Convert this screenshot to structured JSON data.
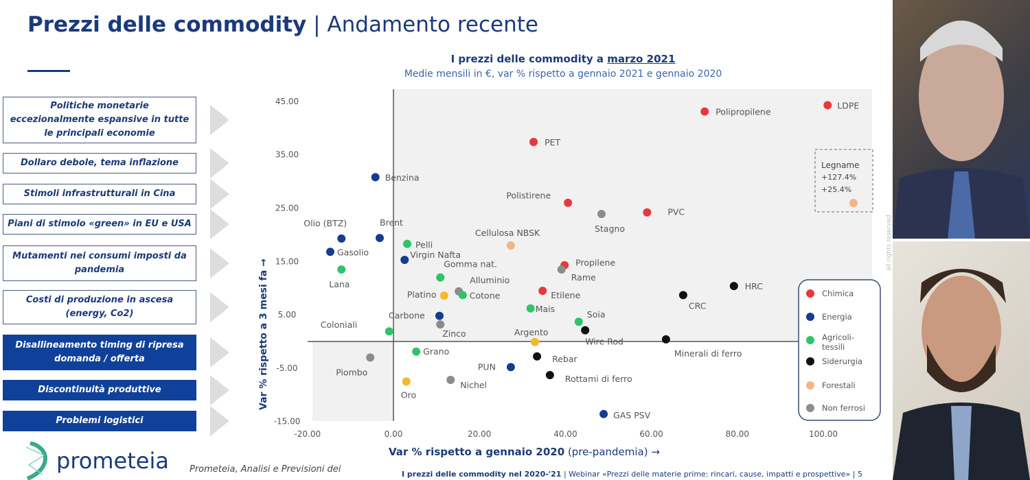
{
  "slide": {
    "title_bold": "Prezzi delle commodity",
    "title_sep": " | ",
    "title_light": "Andamento recente",
    "drivers": [
      {
        "label": "Politiche monetarie eccezionalmente espansive in tutte le principali economie",
        "highlight": false
      },
      {
        "label": "Dollaro debole, tema inflazione",
        "highlight": false
      },
      {
        "label": "Stimoli infrastrutturali in Cina",
        "highlight": false
      },
      {
        "label": "Piani di stimolo «green» in EU e USA",
        "highlight": false
      },
      {
        "label": "Mutamenti nei consumi imposti da pandemia",
        "highlight": false
      },
      {
        "label": "Costi di produzione in ascesa (energy, Co2)",
        "highlight": false
      },
      {
        "label": "Disallineamento timing di ripresa domanda / offerta",
        "highlight": true
      },
      {
        "label": "Discontinuità produttive",
        "highlight": true
      },
      {
        "label": "Problemi logistici",
        "highlight": true
      }
    ],
    "logo": "prometeia",
    "source": "Prometeia, Analisi e Previsioni dei",
    "footer_bold": "I prezzi delle commodity nel 2020-'21",
    "footer_rest": " | Webinar «Prezzi delle materie prime: rincari, cause, impatti e prospettive» | 5",
    "rights": "all rights reserved"
  },
  "chart_data": {
    "type": "scatter",
    "title_prefix": "I prezzi delle commodity a ",
    "title_emph": "marzo 2021",
    "subtitle": "Medie mensili in €, var % rispetto a gennaio 2021 e gennaio 2020",
    "xlabel_bold": "Var % rispetto a gennaio 2020",
    "xlabel_rest": " (pre-pandemia) →",
    "ylabel": "Var % rispetto a 3 mesi fa →",
    "xlim": [
      -20,
      100
    ],
    "ylim": [
      -15,
      45
    ],
    "xticks": [
      "-20.00",
      "0.00",
      "20.00",
      "40.00",
      "60.00",
      "80.00",
      "100.00"
    ],
    "yticks": [
      "45.00",
      "35.00",
      "25.00",
      "15.00",
      "5.00",
      "-5.00",
      "-15.00"
    ],
    "categories": [
      {
        "name": "Chimica",
        "color": "#e8383d"
      },
      {
        "name": "Energia",
        "color": "#133d91"
      },
      {
        "name": "Agricoli-tessili",
        "color": "#2ec46a"
      },
      {
        "name": "Siderurgia",
        "color": "#111111"
      },
      {
        "name": "Forestali",
        "color": "#f4b583"
      },
      {
        "name": "Non ferrosi",
        "color": "#8c8c8c"
      }
    ],
    "legend_position": "bottom-right",
    "points": [
      {
        "label": "LDPE",
        "cat": 0,
        "x": 101,
        "y": 44.3
      },
      {
        "label": "Polipropilene",
        "cat": 0,
        "x": 72.4,
        "y": 43.1
      },
      {
        "label": "PET",
        "cat": 0,
        "x": 32.6,
        "y": 37.4
      },
      {
        "label": "Benzina",
        "cat": 1,
        "x": -4.2,
        "y": 30.8
      },
      {
        "label": "Polistirene",
        "cat": 0,
        "x": 40.6,
        "y": 26.0
      },
      {
        "label": "Stagno",
        "cat": 5,
        "x": 48.4,
        "y": 23.9
      },
      {
        "label": "PVC",
        "cat": 0,
        "x": 59.0,
        "y": 24.2
      },
      {
        "label": "Olio (BTZ)",
        "cat": 1,
        "x": -12.1,
        "y": 19.3
      },
      {
        "label": "Brent",
        "cat": 1,
        "x": -3.2,
        "y": 19.4
      },
      {
        "label": "Cellulosa NBSK",
        "cat": 4,
        "x": 27.3,
        "y": 18.0
      },
      {
        "label": "Pelli",
        "cat": 2,
        "x": 3.2,
        "y": 18.3
      },
      {
        "label": "Gasolio",
        "cat": 1,
        "x": -14.7,
        "y": 16.8
      },
      {
        "label": "Virgin Nafta",
        "cat": 1,
        "x": 2.6,
        "y": 15.3
      },
      {
        "label": "Propilene",
        "cat": 0,
        "x": 39.8,
        "y": 14.3
      },
      {
        "label": "Rame",
        "cat": 5,
        "x": 39.1,
        "y": 13.5
      },
      {
        "label": "Lana",
        "cat": 2,
        "x": -12.1,
        "y": 13.5
      },
      {
        "label": "Gomma nat.",
        "cat": 2,
        "x": 10.9,
        "y": 12.0
      },
      {
        "label": "HRC",
        "cat": 3,
        "x": 79.2,
        "y": 10.4
      },
      {
        "label": "Etilene",
        "cat": 0,
        "x": 34.7,
        "y": 9.5
      },
      {
        "label": "Alluminio",
        "cat": 5,
        "x": 15.2,
        "y": 9.4
      },
      {
        "label": "Platino",
        "cat": 4,
        "x": 11.8,
        "y": 8.6,
        "color": "#f2b92b"
      },
      {
        "label": "Cotone",
        "cat": 2,
        "x": 16.1,
        "y": 8.7
      },
      {
        "label": "CRC",
        "cat": 3,
        "x": 67.4,
        "y": 8.7
      },
      {
        "label": "Mais",
        "cat": 2,
        "x": 31.9,
        "y": 6.2
      },
      {
        "label": "Carbone",
        "cat": 1,
        "x": 10.7,
        "y": 4.8
      },
      {
        "label": "Soia",
        "cat": 2,
        "x": 43.1,
        "y": 3.7
      },
      {
        "label": "Zinco",
        "cat": 5,
        "x": 10.9,
        "y": 3.2
      },
      {
        "label": "Coloniali",
        "cat": 2,
        "x": -1.0,
        "y": 1.9
      },
      {
        "label": "Wire Rod",
        "cat": 3,
        "x": 44.6,
        "y": 2.1
      },
      {
        "label": "Argento",
        "cat": 4,
        "x": 32.9,
        "y": -0.1,
        "color": "#f2b92b"
      },
      {
        "label": "Minerali di ferro",
        "cat": 3,
        "x": 63.4,
        "y": 0.4
      },
      {
        "label": "Grano",
        "cat": 2,
        "x": 5.3,
        "y": -1.9
      },
      {
        "label": "Rebar",
        "cat": 3,
        "x": 33.4,
        "y": -2.8
      },
      {
        "label": "Piombo",
        "cat": 5,
        "x": -5.4,
        "y": -3.0
      },
      {
        "label": "PUN",
        "cat": 1,
        "x": 27.3,
        "y": -4.8
      },
      {
        "label": "Rottami di ferro",
        "cat": 3,
        "x": 36.4,
        "y": -6.3
      },
      {
        "label": "Oro",
        "cat": 4,
        "x": 3.0,
        "y": -7.5,
        "color": "#f2b92b"
      },
      {
        "label": "Nichel",
        "cat": 5,
        "x": 13.3,
        "y": -7.2
      },
      {
        "label": "GAS PSV",
        "cat": 1,
        "x": 48.9,
        "y": -13.6
      }
    ],
    "outlier": {
      "label": "Legname",
      "cat": 4,
      "x": 127.4,
      "y": 25.4,
      "x_text": "+127.4%",
      "y_text": "+25.4%"
    }
  }
}
